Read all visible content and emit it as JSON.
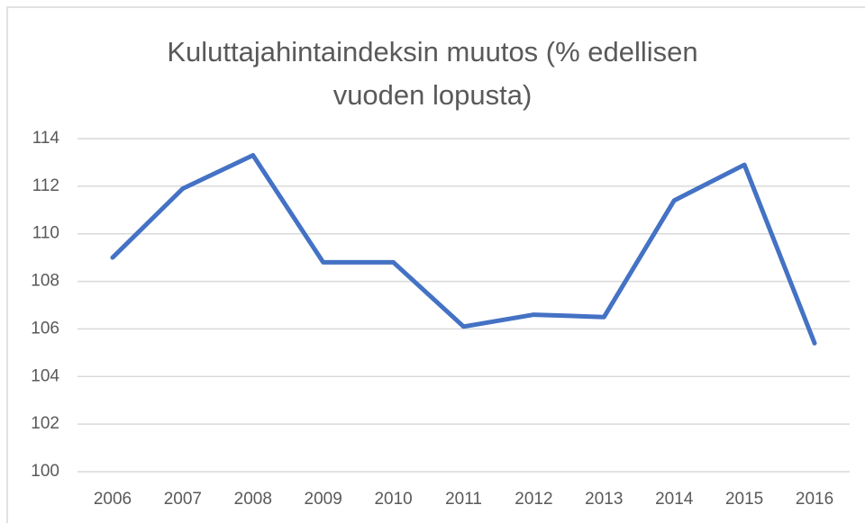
{
  "chart_data": {
    "type": "line",
    "title": "Kuluttajahintaindeksin muutos (% edellisen vuoden lopusta)",
    "categories": [
      "2006",
      "2007",
      "2008",
      "2009",
      "2010",
      "2011",
      "2012",
      "2013",
      "2014",
      "2015",
      "2016"
    ],
    "values": [
      109.0,
      111.9,
      113.3,
      108.8,
      108.8,
      106.1,
      106.6,
      106.5,
      111.4,
      112.9,
      105.4
    ],
    "color": "#4472c4",
    "ylim": [
      100,
      114
    ],
    "yticks": [
      100,
      102,
      104,
      106,
      108,
      110,
      112,
      114
    ],
    "grid": true
  }
}
